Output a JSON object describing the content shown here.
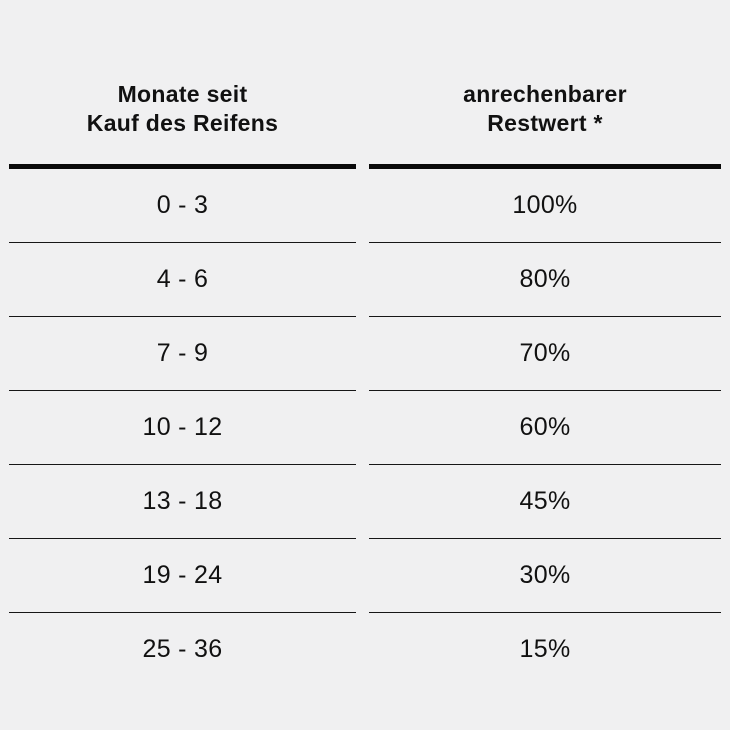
{
  "colors": {
    "background": "#f0f0f1",
    "text": "#111111",
    "thick_rule": "#0a0a0a",
    "thin_rule": "#161616"
  },
  "table": {
    "columns": [
      {
        "line1": "Monate seit",
        "line2": "Kauf des Reifens"
      },
      {
        "line1": "anrechenbarer",
        "line2": "Restwert *"
      }
    ],
    "rows": [
      {
        "months": "0 - 3",
        "value": "100%"
      },
      {
        "months": "4 - 6",
        "value": "80%"
      },
      {
        "months": "7 - 9",
        "value": "70%"
      },
      {
        "months": "10 - 12",
        "value": "60%"
      },
      {
        "months": "13 - 18",
        "value": "45%"
      },
      {
        "months": "19 - 24",
        "value": "30%"
      },
      {
        "months": "25 - 36",
        "value": "15%"
      }
    ]
  },
  "chart_data": {
    "type": "table",
    "columns": [
      "Monate seit Kauf des Reifens",
      "anrechenbarer Restwert *"
    ],
    "rows": [
      [
        "0 - 3",
        "100%"
      ],
      [
        "4 - 6",
        "80%"
      ],
      [
        "7 - 9",
        "70%"
      ],
      [
        "10 - 12",
        "60%"
      ],
      [
        "13 - 18",
        "45%"
      ],
      [
        "19 - 24",
        "30%"
      ],
      [
        "25 - 36",
        "15%"
      ]
    ],
    "title": "",
    "notes": "asterisk after 'Restwert' refers to a footnote not shown in image"
  }
}
